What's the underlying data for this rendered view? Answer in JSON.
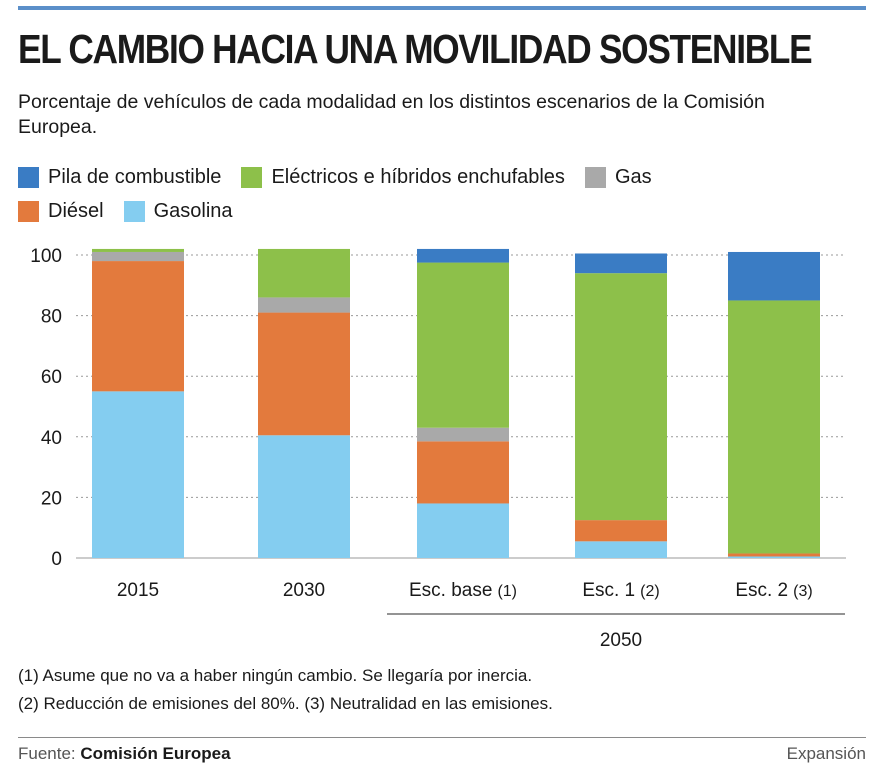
{
  "title": "EL CAMBIO HACIA UNA MOVILIDAD SOSTENIBLE",
  "subtitle": "Porcentaje de vehículos de cada modalidad en los distintos escenarios de la Comisión Europea.",
  "colors": {
    "Pila de combustible": "#3a7cc4",
    "Eléctricos e híbridos enchufables": "#8dc04a",
    "Gas": "#a9a9a9",
    "Diésel": "#e37a3d",
    "Gasolina": "#84cdf0",
    "accent_bar": "#5b8fc9"
  },
  "legend": {
    "row1": [
      "Pila de combustible",
      "Eléctricos e híbridos enchufables",
      "Gas"
    ],
    "row2": [
      "Diésel",
      "Gasolina"
    ]
  },
  "chart_data": {
    "type": "bar",
    "stacked": true,
    "categories": [
      "2015",
      "2030",
      "Esc. base (1)",
      "Esc. 1 (2)",
      "Esc. 2 (3)"
    ],
    "category_labels": [
      {
        "main": "2015",
        "note": ""
      },
      {
        "main": "2030",
        "note": ""
      },
      {
        "main": "Esc. base",
        "note": "(1)"
      },
      {
        "main": "Esc. 1",
        "note": "(2)"
      },
      {
        "main": "Esc. 2",
        "note": "(3)"
      }
    ],
    "group_label": "2050",
    "group_categories": [
      "Esc. base (1)",
      "Esc. 1 (2)",
      "Esc. 2 (3)"
    ],
    "series": [
      {
        "name": "Gasolina",
        "values": [
          55,
          40.5,
          18,
          5.5,
          0.5
        ]
      },
      {
        "name": "Diésel",
        "values": [
          43,
          40.5,
          20.5,
          7,
          1
        ]
      },
      {
        "name": "Gas",
        "values": [
          3,
          5,
          4.5,
          0,
          0
        ]
      },
      {
        "name": "Eléctricos e híbridos enchufables",
        "values": [
          1,
          16,
          54.5,
          81.5,
          83.5
        ]
      },
      {
        "name": "Pila de combustible",
        "values": [
          0,
          0,
          4.5,
          6.5,
          16
        ]
      }
    ],
    "ylim": [
      0,
      100
    ],
    "yticks": [
      0,
      20,
      40,
      60,
      80,
      100
    ],
    "grid": true,
    "xlabel": "",
    "ylabel": ""
  },
  "notes": [
    "(1) Asume que no va a haber ningún cambio. Se llegaría por inercia.",
    "(2) Reducción de emisiones del 80%. (3) Neutralidad en las emisiones."
  ],
  "source": {
    "label": "Fuente:",
    "name": "Comisión Europea"
  },
  "brand": "Expansión"
}
